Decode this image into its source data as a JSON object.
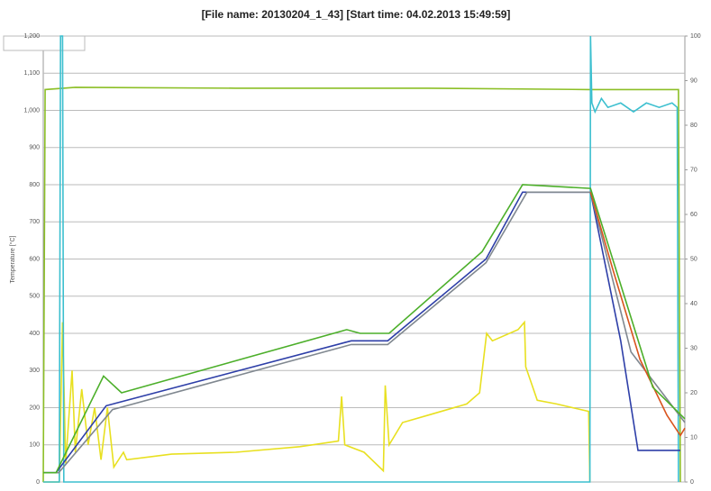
{
  "chart_data": {
    "type": "line",
    "title": "[File name: 20130204_1_43]    [Start time: 04.02.2013 15:49:59]",
    "y_label": "Temperature [°C]",
    "xlim": [
      0,
      100
    ],
    "ylim": [
      0,
      1200
    ],
    "yticks": [
      0,
      100,
      200,
      300,
      400,
      500,
      600,
      700,
      800,
      900,
      {
        "value": 1000,
        "label": "1,000"
      },
      {
        "value": 1100,
        "label": "1,100"
      },
      {
        "value": 1200,
        "label": "1,200"
      }
    ],
    "y2lim": [
      0,
      100
    ],
    "y2ticks": [
      0,
      10,
      20,
      30,
      40,
      50,
      60,
      70,
      80,
      90,
      100
    ],
    "grid": true,
    "series": [
      {
        "color": "#e8e020",
        "x": [
          0,
          2.5,
          3,
          3.5,
          4.5,
          5,
          6,
          7,
          8,
          9,
          10,
          11,
          12.5,
          13,
          20,
          30,
          40,
          46,
          46.5,
          47,
          50,
          53,
          53.3,
          53.9,
          56,
          60,
          66,
          68,
          69.1,
          70,
          74,
          75,
          75.2,
          77,
          80,
          85,
          85.2
        ],
        "values": [
          0,
          0,
          430,
          50,
          300,
          80,
          250,
          100,
          200,
          60,
          200,
          40,
          80,
          60,
          75,
          80,
          95,
          110,
          230,
          100,
          80,
          30,
          260,
          100,
          160,
          180,
          210,
          240,
          400,
          380,
          410,
          430,
          310,
          220,
          210,
          190,
          0
        ]
      },
      {
        "color": "#8cbf26",
        "axis": "y2",
        "x": [
          0,
          0.3,
          5,
          30,
          60,
          85,
          99,
          99.3
        ],
        "values": [
          0,
          88,
          88.5,
          88.3,
          88.3,
          88,
          88,
          0
        ]
      },
      {
        "color": "#3bbfcf",
        "axis": "y2",
        "x": [
          0,
          2.5,
          2.7,
          3,
          3.2,
          85.2,
          85.3,
          85.5,
          86,
          87,
          88,
          90,
          92,
          94,
          96,
          98,
          98.8,
          99
        ],
        "values": [
          0,
          0,
          100,
          100,
          0,
          0,
          100,
          85,
          83,
          86,
          84,
          85,
          83,
          85,
          84,
          85,
          84,
          0
        ]
      },
      {
        "color": "#2e3fa8",
        "x": [
          0,
          2,
          9.8,
          48,
          53.7,
          69,
          74.7,
          85.3,
          90,
          92.7,
          99.3
        ],
        "values": [
          25,
          25,
          205,
          380,
          380,
          600,
          780,
          780,
          380,
          85,
          85
        ]
      },
      {
        "color": "#808890",
        "x": [
          0,
          2.4,
          10.8,
          48,
          53.7,
          69,
          75.4,
          85.3,
          91.6,
          100
        ],
        "values": [
          25,
          25,
          195,
          370,
          370,
          590,
          780,
          780,
          350,
          160
        ]
      },
      {
        "color": "#d9541e",
        "x": [
          85.3,
          88.8,
          93,
          97.2,
          99.3,
          100
        ],
        "values": [
          780,
          570,
          330,
          180,
          125,
          145
        ]
      },
      {
        "color": "#4caf2a",
        "x": [
          0,
          2,
          9.4,
          12.2,
          47.3,
          49.4,
          53.9,
          68.4,
          74.7,
          85.3,
          90.2,
          95,
          100
        ],
        "values": [
          25,
          25,
          285,
          240,
          410,
          400,
          400,
          620,
          800,
          790,
          520,
          255,
          170
        ]
      }
    ]
  }
}
